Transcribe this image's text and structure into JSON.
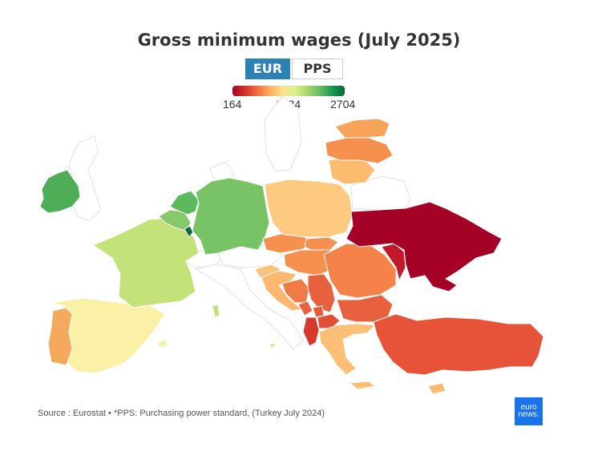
{
  "title": "Gross minimum wages (July 2025)",
  "toggle": {
    "eur_label": "EUR",
    "pps_label": "PPS",
    "selected": "EUR"
  },
  "legend": {
    "min_label": "164",
    "mid_label": "1434",
    "max_label": "2704",
    "colors": [
      "#a50026",
      "#d73027",
      "#f46d43",
      "#fdae61",
      "#fee08b",
      "#d9ef8b",
      "#a6d96a",
      "#66bd63",
      "#1a9850",
      "#006837"
    ]
  },
  "map": {
    "countries": [
      {
        "name": "Ireland",
        "color": "#4dae57"
      },
      {
        "name": "Portugal",
        "color": "#f5a95c"
      },
      {
        "name": "Spain",
        "color": "#faf1a6"
      },
      {
        "name": "France",
        "color": "#c3e27a"
      },
      {
        "name": "Belgium",
        "color": "#86c968"
      },
      {
        "name": "Netherlands",
        "color": "#5db95d"
      },
      {
        "name": "Luxembourg",
        "color": "#0a6e3c"
      },
      {
        "name": "Germany",
        "color": "#78c366"
      },
      {
        "name": "Poland",
        "color": "#fdca80"
      },
      {
        "name": "Czechia",
        "color": "#f6904e"
      },
      {
        "name": "Slovakia",
        "color": "#f6904e"
      },
      {
        "name": "Hungary",
        "color": "#f6904e"
      },
      {
        "name": "Slovenia",
        "color": "#fdc27a"
      },
      {
        "name": "Croatia",
        "color": "#fdb76e"
      },
      {
        "name": "Serbia",
        "color": "#e8613e"
      },
      {
        "name": "Bosnia and Herzegovina",
        "color": "#f07a48"
      },
      {
        "name": "Montenegro",
        "color": "#e8613e"
      },
      {
        "name": "Kosovo",
        "color": "#e55a3a"
      },
      {
        "name": "Albania",
        "color": "#d53a2c"
      },
      {
        "name": "North Macedonia",
        "color": "#e14f35"
      },
      {
        "name": "Romania",
        "color": "#f58349"
      },
      {
        "name": "Bulgaria",
        "color": "#e8613e"
      },
      {
        "name": "Moldova",
        "color": "#c01a2a"
      },
      {
        "name": "Ukraine",
        "color": "#a50026"
      },
      {
        "name": "Greece",
        "color": "#fdbf75"
      },
      {
        "name": "Turkey",
        "color": "#e65339"
      },
      {
        "name": "Cyprus",
        "color": "#fdb76e"
      },
      {
        "name": "Malta",
        "color": "#d2ec86"
      },
      {
        "name": "Lithuania",
        "color": "#fdbb70"
      },
      {
        "name": "Latvia",
        "color": "#f6904e"
      },
      {
        "name": "Estonia",
        "color": "#f8a35a"
      }
    ]
  },
  "source": "Source : Eurostat • *PPS: Purchasing power standard, (Turkey July 2024)",
  "logo": {
    "line1": "euro",
    "line2": "news."
  }
}
